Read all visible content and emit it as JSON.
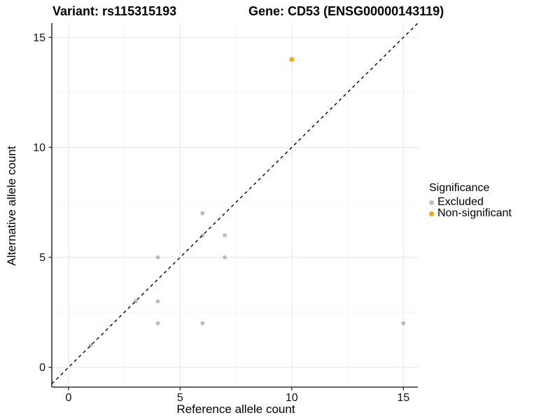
{
  "titles": {
    "left": "Variant: rs115315193",
    "right": "Gene: CD53 (ENSG00000143119)"
  },
  "chart_data": {
    "type": "scatter",
    "xlabel": "Reference allele count",
    "ylabel": "Alternative allele count",
    "x_ticks": [
      0,
      5,
      10,
      15
    ],
    "y_ticks": [
      0,
      5,
      10,
      15
    ],
    "x_minor_gridlines": [
      2.5,
      7.5,
      12.5
    ],
    "y_minor_gridlines": [
      2.5,
      7.5,
      12.5
    ],
    "xlim": [
      -0.75,
      15.65
    ],
    "ylim": [
      -0.9,
      15.65
    ],
    "grid": true,
    "diagonal_line": {
      "type": "dashed",
      "slope": 1,
      "intercept": 0,
      "color": "#000000"
    },
    "series": [
      {
        "name": "Excluded",
        "color": "#BEBEBE",
        "points": [
          [
            1,
            1
          ],
          [
            3,
            3
          ],
          [
            4,
            2
          ],
          [
            4,
            3
          ],
          [
            4,
            5
          ],
          [
            6,
            2
          ],
          [
            6,
            6
          ],
          [
            6,
            7
          ],
          [
            7,
            5
          ],
          [
            7,
            6
          ],
          [
            15,
            2
          ]
        ]
      },
      {
        "name": "Non-significant",
        "color": "#FFA500",
        "points": [
          [
            10,
            14
          ]
        ]
      }
    ],
    "legend": {
      "title": "Significance",
      "position": "right"
    }
  },
  "style_colors": {
    "grid_major": "#E6E6E6",
    "grid_minor": "#F3F3F3",
    "axis_line": "#333333",
    "tick_label": "#111111",
    "background": "#FFFFFF"
  }
}
